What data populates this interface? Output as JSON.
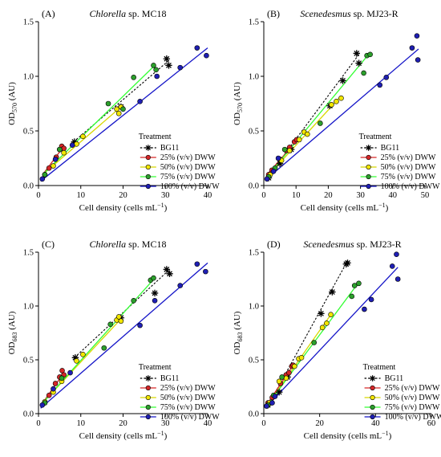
{
  "colors": {
    "BG11": "#000000",
    "25": "#d62728",
    "50": "#f2e600",
    "75": "#2ca02c",
    "100": "#1f1fb4",
    "line_BG11": "#000000",
    "line_25": "#d62728",
    "line_50": "#d8d800",
    "line_75": "#33ff33",
    "line_100": "#1515c8"
  },
  "chart_data": [
    {
      "type": "scatter",
      "letter": "(A)",
      "title_italic": "Chlorella",
      "title_rest": " sp. MC18",
      "xlabel": "Cell density (cells mL",
      "xlabel_sup": "−1",
      "xlabel_end": ")",
      "ylabel": "OD",
      "ylabel_sub": "570",
      "ylabel_end": " (AU)",
      "xlim": [
        0,
        40
      ],
      "ylim": [
        0,
        1.5
      ],
      "xticks": [
        "0",
        "10",
        "20",
        "30",
        "40"
      ],
      "yticks": [
        "0.0",
        "0.5",
        "1.0",
        "1.5"
      ],
      "legend_title": "Treatment",
      "legend": [
        "BG11",
        "25% (v/v) DWW",
        "50% (v/v) DWW",
        "75% (v/v) DWW",
        "100% (v/v) DWW"
      ],
      "series": [
        {
          "key": "BG11",
          "marker": "star",
          "dash": true,
          "line": [
            [
              8.3,
              0.4
            ],
            [
              31,
              1.15
            ]
          ],
          "x": [
            8.5,
            19.5,
            30.3,
            30.8
          ],
          "y": [
            0.4,
            0.72,
            1.16,
            1.1
          ]
        },
        {
          "key": "25",
          "marker": "circle",
          "line": [
            [
              1,
              0.1
            ],
            [
              6,
              0.36
            ]
          ],
          "x": [
            1.5,
            2.5,
            4.2,
            5.0,
            5.5,
            6.0
          ],
          "y": [
            0.1,
            0.16,
            0.26,
            0.33,
            0.36,
            0.34
          ]
        },
        {
          "key": "50",
          "marker": "circle",
          "line": [
            [
              1,
              0.1
            ],
            [
              19.5,
              0.72
            ]
          ],
          "x": [
            1.5,
            3.5,
            6.0,
            9.0,
            10.5,
            18.5,
            19.0,
            19.5
          ],
          "y": [
            0.1,
            0.18,
            0.3,
            0.38,
            0.45,
            0.7,
            0.66,
            0.72
          ]
        },
        {
          "key": "75",
          "marker": "circle",
          "line": [
            [
              1,
              0.1
            ],
            [
              27.5,
              1.1
            ]
          ],
          "x": [
            1.5,
            5.0,
            16.5,
            20.0,
            22.5,
            27.2,
            27.8
          ],
          "y": [
            0.1,
            0.33,
            0.75,
            0.7,
            0.99,
            1.1,
            1.06
          ]
        },
        {
          "key": "100",
          "marker": "circle",
          "line": [
            [
              0.5,
              0.04
            ],
            [
              40,
              1.26
            ]
          ],
          "x": [
            0.9,
            4.0,
            8.0,
            24.0,
            28.0,
            33.5,
            37.5,
            39.7
          ],
          "y": [
            0.06,
            0.24,
            0.37,
            0.77,
            1.0,
            1.08,
            1.26,
            1.19
          ]
        }
      ]
    },
    {
      "type": "scatter",
      "letter": "(B)",
      "title_italic": "Scenedesmus",
      "title_rest": " sp. MJ23-R",
      "xlabel": "Cell density (cells mL",
      "xlabel_sup": "−1",
      "xlabel_end": ")",
      "ylabel": "OD",
      "ylabel_sub": "570",
      "ylabel_end": " (AU)",
      "xlim": [
        0,
        50
      ],
      "ylim": [
        0,
        1.5
      ],
      "xticks": [
        "0",
        "10",
        "20",
        "30",
        "40",
        "50"
      ],
      "yticks": [
        "0.0",
        "0.5",
        "1.0",
        "1.5"
      ],
      "legend_title": "Treatment",
      "legend": [
        "BG11",
        "25% (v/v) DWW",
        "50% (v/v) DWW",
        "75% (v/v) DWW",
        "100% (v/v) DWW"
      ],
      "series": [
        {
          "key": "BG11",
          "marker": "star",
          "dash": true,
          "line": [
            [
              1,
              0.07
            ],
            [
              29.5,
              1.2
            ]
          ],
          "x": [
            1.5,
            5.0,
            8.5,
            20.5,
            24.5,
            28.8,
            29.5
          ],
          "y": [
            0.07,
            0.2,
            0.33,
            0.73,
            0.96,
            1.21,
            1.12
          ]
        },
        {
          "key": "25",
          "marker": "circle",
          "line": [
            [
              1,
              0.1
            ],
            [
              10.5,
              0.42
            ]
          ],
          "x": [
            1.5,
            2.5,
            5.0,
            7.0,
            8.0,
            9.5,
            10.2
          ],
          "y": [
            0.1,
            0.14,
            0.24,
            0.32,
            0.35,
            0.4,
            0.42
          ]
        },
        {
          "key": "50",
          "marker": "circle",
          "line": [
            [
              1,
              0.08
            ],
            [
              24,
              0.82
            ]
          ],
          "x": [
            2.0,
            5.5,
            8.0,
            11.0,
            12.5,
            13.5,
            21.0,
            22.5,
            24.0
          ],
          "y": [
            0.1,
            0.23,
            0.32,
            0.42,
            0.49,
            0.47,
            0.74,
            0.77,
            0.8
          ]
        },
        {
          "key": "75",
          "marker": "circle",
          "line": [
            [
              1,
              0.08
            ],
            [
              32.5,
              1.2
            ]
          ],
          "x": [
            1.5,
            3.5,
            6.5,
            17.5,
            31.0,
            32.0,
            33.0
          ],
          "y": [
            0.08,
            0.16,
            0.33,
            0.57,
            1.03,
            1.19,
            1.2
          ]
        },
        {
          "key": "100",
          "marker": "circle",
          "line": [
            [
              0.5,
              0.05
            ],
            [
              48,
              1.25
            ]
          ],
          "x": [
            1.0,
            3.0,
            4.5,
            36.0,
            38.0,
            46.0,
            47.5,
            47.8
          ],
          "y": [
            0.06,
            0.13,
            0.25,
            0.92,
            0.99,
            1.26,
            1.37,
            1.15
          ]
        }
      ]
    },
    {
      "type": "scatter",
      "letter": "(C)",
      "title_italic": "Chlorella",
      "title_rest": " sp. MC18",
      "xlabel": "Cell density (cells mL",
      "xlabel_sup": "−1",
      "xlabel_end": ")",
      "ylabel": "OD",
      "ylabel_sub": "683",
      "ylabel_end": " (AU)",
      "xlim": [
        0,
        40
      ],
      "ylim": [
        0,
        1.5
      ],
      "xticks": [
        "0",
        "10",
        "20",
        "30",
        "40"
      ],
      "yticks": [
        "0.0",
        "0.5",
        "1.0",
        "1.5"
      ],
      "legend_title": "Treatment",
      "legend": [
        "BG11",
        "25% (v/v) DWW",
        "50% (v/v) DWW",
        "75% (v/v) DWW",
        "100% (v/v) DWW"
      ],
      "series": [
        {
          "key": "BG11",
          "marker": "star",
          "dash": true,
          "line": [
            [
              8.5,
              0.52
            ],
            [
              31,
              1.34
            ]
          ],
          "x": [
            8.7,
            19.5,
            27.5,
            30.3,
            31.0
          ],
          "y": [
            0.52,
            0.89,
            1.12,
            1.34,
            1.3
          ]
        },
        {
          "key": "25",
          "marker": "circle",
          "line": [
            [
              1,
              0.1
            ],
            [
              6,
              0.38
            ]
          ],
          "x": [
            1.5,
            2.5,
            4.0,
            5.0,
            5.6,
            6.0
          ],
          "y": [
            0.1,
            0.17,
            0.28,
            0.34,
            0.4,
            0.36
          ]
        },
        {
          "key": "50",
          "marker": "circle",
          "line": [
            [
              1,
              0.1
            ],
            [
              19.5,
              0.88
            ]
          ],
          "x": [
            1.5,
            3.5,
            5.5,
            9.0,
            10.5,
            18.5,
            19.0,
            19.5
          ],
          "y": [
            0.11,
            0.2,
            0.3,
            0.49,
            0.55,
            0.87,
            0.9,
            0.86
          ]
        },
        {
          "key": "75",
          "marker": "circle",
          "line": [
            [
              1,
              0.1
            ],
            [
              27.5,
              1.26
            ]
          ],
          "x": [
            1.5,
            5.5,
            15.5,
            17.0,
            22.5,
            26.5,
            27.2
          ],
          "y": [
            0.1,
            0.33,
            0.61,
            0.83,
            1.05,
            1.24,
            1.26
          ]
        },
        {
          "key": "100",
          "marker": "circle",
          "line": [
            [
              0.5,
              0.05
            ],
            [
              40,
              1.4
            ]
          ],
          "x": [
            0.9,
            3.5,
            7.5,
            24.0,
            27.5,
            33.5,
            37.5,
            39.5
          ],
          "y": [
            0.08,
            0.23,
            0.38,
            0.82,
            1.05,
            1.19,
            1.39,
            1.32
          ]
        }
      ]
    },
    {
      "type": "scatter",
      "letter": "(D)",
      "title_italic": "Scenedesmus",
      "title_rest": " sp. MJ23-R",
      "xlabel": "Cell density (cells mL",
      "xlabel_sup": "−1",
      "xlabel_end": ")",
      "ylabel": "OD",
      "ylabel_sub": "683",
      "ylabel_end": " (AU)",
      "xlim": [
        0,
        60
      ],
      "ylim": [
        0,
        1.5
      ],
      "xticks": [
        "0",
        "20",
        "40",
        "60"
      ],
      "yticks": [
        "0.0",
        "0.5",
        "1.0",
        "1.5"
      ],
      "legend_title": "Treatment",
      "legend": [
        "BG11",
        "25% (v/v) DWW",
        "50% (v/v) DWW",
        "75% (v/v) DWW",
        "100% (v/v) DWW"
      ],
      "series": [
        {
          "key": "BG11",
          "marker": "star",
          "dash": true,
          "line": [
            [
              1,
              0.05
            ],
            [
              30,
              1.42
            ]
          ],
          "x": [
            1.5,
            5.5,
            8.5,
            20.5,
            24.5,
            29.5,
            30.0
          ],
          "y": [
            0.08,
            0.2,
            0.34,
            0.93,
            1.13,
            1.39,
            1.4
          ]
        },
        {
          "key": "25",
          "marker": "circle",
          "line": [
            [
              1,
              0.08
            ],
            [
              10.5,
              0.45
            ]
          ],
          "x": [
            1.5,
            3.0,
            6.0,
            8.0,
            9.0,
            10.0,
            10.5
          ],
          "y": [
            0.1,
            0.15,
            0.28,
            0.36,
            0.38,
            0.44,
            0.45
          ]
        },
        {
          "key": "50",
          "marker": "circle",
          "line": [
            [
              1,
              0.07
            ],
            [
              24,
              0.92
            ]
          ],
          "x": [
            2.0,
            5.5,
            8.0,
            11.0,
            12.5,
            13.5,
            21.0,
            22.5,
            24.0
          ],
          "y": [
            0.1,
            0.3,
            0.33,
            0.44,
            0.51,
            0.52,
            0.8,
            0.84,
            0.92
          ]
        },
        {
          "key": "75",
          "marker": "circle",
          "line": [
            [
              1,
              0.07
            ],
            [
              34,
              1.22
            ]
          ],
          "x": [
            1.5,
            3.5,
            6.5,
            18.0,
            31.5,
            32.5,
            34.0
          ],
          "y": [
            0.08,
            0.17,
            0.34,
            0.66,
            1.09,
            1.19,
            1.21
          ]
        },
        {
          "key": "100",
          "marker": "circle",
          "line": [
            [
              0.5,
              0.05
            ],
            [
              48,
              1.36
            ]
          ],
          "x": [
            1.0,
            3.0,
            4.0,
            36.0,
            38.5,
            46.0,
            47.5,
            48.0
          ],
          "y": [
            0.07,
            0.1,
            0.16,
            0.97,
            1.06,
            1.37,
            1.48,
            1.25
          ]
        }
      ]
    }
  ]
}
